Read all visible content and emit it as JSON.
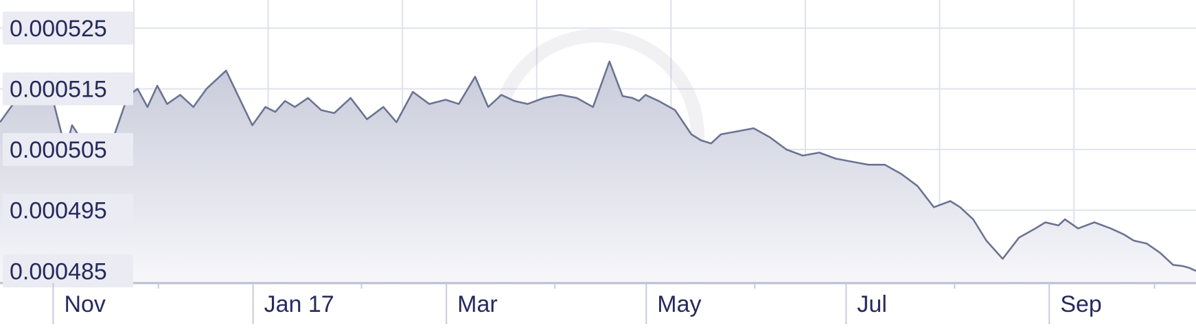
{
  "chart_data": {
    "type": "area",
    "watermark": "xe",
    "colors": {
      "line": "#6b7392",
      "fill_top": "#c7cad9",
      "fill_bottom": "#f7f7fb",
      "text": "#262a5c",
      "label_bg": "#ebebf3"
    },
    "yticks": [
      "0.000525",
      "0.000515",
      "0.000505",
      "0.000495",
      "0.000485"
    ],
    "ytick_values": [
      0.000525,
      0.000515,
      0.000505,
      0.000495,
      0.000485
    ],
    "xticks": [
      "Nov",
      "Jan 17",
      "Mar",
      "May",
      "Jul",
      "Sep"
    ],
    "xtick_dates": [
      "2016-11-01",
      "2017-01-01",
      "2017-03-01",
      "2017-05-01",
      "2017-07-01",
      "2017-09-01"
    ],
    "ylim": [
      0.000483,
      0.0005285
    ],
    "xlim": [
      "2016-10-12",
      "2017-10-12"
    ],
    "grid": true,
    "x": [
      "2016-10-12",
      "2016-10-16",
      "2016-10-20",
      "2016-10-24",
      "2016-10-28",
      "2016-11-01",
      "2016-11-03",
      "2016-11-06",
      "2016-11-10",
      "2016-11-15",
      "2016-11-20",
      "2016-11-23",
      "2016-11-26",
      "2016-11-29",
      "2016-12-02",
      "2016-12-06",
      "2016-12-10",
      "2016-12-14",
      "2016-12-20",
      "2016-12-24",
      "2016-12-28",
      "2017-01-01",
      "2017-01-04",
      "2017-01-07",
      "2017-01-10",
      "2017-01-14",
      "2017-01-18",
      "2017-01-22",
      "2017-01-27",
      "2017-02-01",
      "2017-02-06",
      "2017-02-10",
      "2017-02-15",
      "2017-02-20",
      "2017-02-25",
      "2017-03-01",
      "2017-03-06",
      "2017-03-10",
      "2017-03-14",
      "2017-03-18",
      "2017-03-22",
      "2017-03-27",
      "2017-04-01",
      "2017-04-06",
      "2017-04-11",
      "2017-04-16",
      "2017-04-20",
      "2017-04-23",
      "2017-04-25",
      "2017-04-27",
      "2017-05-01",
      "2017-05-06",
      "2017-05-11",
      "2017-05-14",
      "2017-05-17",
      "2017-05-20",
      "2017-05-25",
      "2017-05-30",
      "2017-06-04",
      "2017-06-09",
      "2017-06-14",
      "2017-06-19",
      "2017-06-24",
      "2017-06-29",
      "2017-07-04",
      "2017-07-09",
      "2017-07-14",
      "2017-07-19",
      "2017-07-24",
      "2017-07-29",
      "2017-08-01",
      "2017-08-05",
      "2017-08-09",
      "2017-08-14",
      "2017-08-19",
      "2017-08-24",
      "2017-08-27",
      "2017-08-31",
      "2017-09-02",
      "2017-09-06",
      "2017-09-11",
      "2017-09-16",
      "2017-09-20",
      "2017-09-23",
      "2017-09-27",
      "2017-10-01",
      "2017-10-05",
      "2017-10-08",
      "2017-10-10",
      "2017-10-12"
    ],
    "values": [
      0.0005095,
      0.0005125,
      0.0005165,
      0.0005148,
      0.0005135,
      0.000505,
      0.000509,
      0.0005065,
      0.000505,
      0.000506,
      0.0005138,
      0.000515,
      0.000512,
      0.0005155,
      0.0005125,
      0.000514,
      0.000512,
      0.000515,
      0.000518,
      0.0005135,
      0.000509,
      0.000512,
      0.0005112,
      0.000513,
      0.000512,
      0.0005135,
      0.0005115,
      0.000511,
      0.0005135,
      0.00051,
      0.000512,
      0.0005095,
      0.0005145,
      0.0005125,
      0.0005132,
      0.0005125,
      0.000517,
      0.000512,
      0.000514,
      0.000513,
      0.0005125,
      0.0005135,
      0.000514,
      0.0005135,
      0.000512,
      0.0005195,
      0.0005138,
      0.0005135,
      0.000513,
      0.000514,
      0.000513,
      0.0005115,
      0.0005075,
      0.0005065,
      0.000506,
      0.0005075,
      0.000508,
      0.0005085,
      0.000507,
      0.000505,
      0.000504,
      0.0005045,
      0.0005035,
      0.000503,
      0.0005025,
      0.0005025,
      0.000501,
      0.000499,
      0.0004955,
      0.0004965,
      0.0004955,
      0.0004935,
      0.00049,
      0.000487,
      0.0004905,
      0.000492,
      0.000493,
      0.0004925,
      0.0004935,
      0.000492,
      0.000493,
      0.000492,
      0.000491,
      0.00049,
      0.0004895,
      0.000488,
      0.000486,
      0.0004858,
      0.0004855,
      0.000485
    ]
  }
}
